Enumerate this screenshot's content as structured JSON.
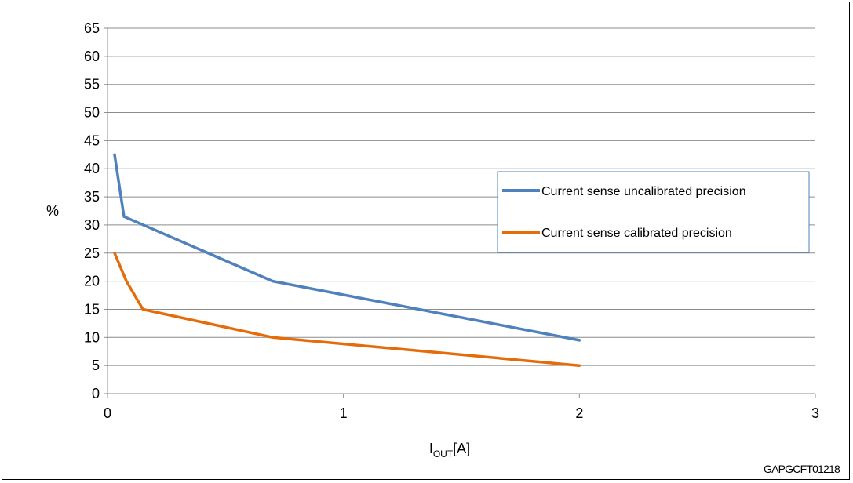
{
  "chart_data": {
    "type": "line",
    "title": "",
    "xlabel": {
      "main": "I",
      "sub": "OUT",
      "unit": "[A]"
    },
    "ylabel": "%",
    "xlim": [
      0,
      3
    ],
    "ylim": [
      0,
      65
    ],
    "xticks": [
      0,
      1,
      2,
      3
    ],
    "yticks": [
      0,
      5,
      10,
      15,
      20,
      25,
      30,
      35,
      40,
      45,
      50,
      55,
      60,
      65
    ],
    "grid": true,
    "legend_position": "right",
    "series": [
      {
        "name": "Current sense uncalibrated precision",
        "color": "#4f81bd",
        "points": [
          [
            0.03,
            42.5
          ],
          [
            0.07,
            31.5
          ],
          [
            0.7,
            20
          ],
          [
            2.0,
            9.5
          ]
        ]
      },
      {
        "name": "Current sense calibrated precision",
        "color": "#e46c0a",
        "points": [
          [
            0.03,
            25
          ],
          [
            0.08,
            20
          ],
          [
            0.15,
            15
          ],
          [
            0.7,
            10
          ],
          [
            2.0,
            5
          ]
        ]
      }
    ]
  },
  "figure_code": "GAPGCFT01218"
}
